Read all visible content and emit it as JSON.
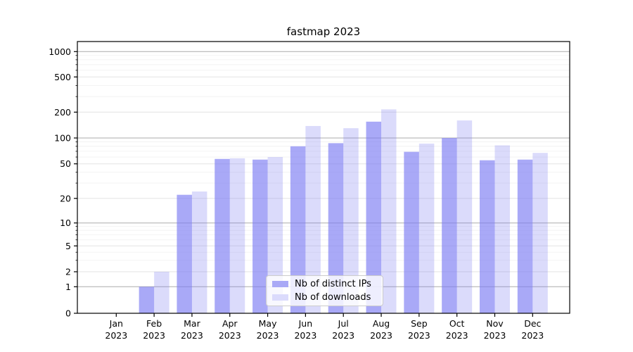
{
  "chart_data": {
    "type": "bar",
    "title": "fastmap 2023",
    "categories": [
      "Jan",
      "Feb",
      "Mar",
      "Apr",
      "May",
      "Jun",
      "Jul",
      "Aug",
      "Sep",
      "Oct",
      "Nov",
      "Dec"
    ],
    "category_year": "2023",
    "series": [
      {
        "name": "Nb of distinct IPs",
        "values": [
          0,
          1,
          22,
          57,
          56,
          80,
          87,
          155,
          69,
          100,
          55,
          56
        ],
        "bar_color_base": "#7b7bf2",
        "bar_opacity": 0.65,
        "legend_color": "#a9a9f6"
      },
      {
        "name": "Nb of downloads",
        "values": [
          0,
          2,
          24,
          58,
          60,
          138,
          130,
          215,
          86,
          160,
          82,
          67
        ],
        "bar_color_base": "#7b7bf2",
        "bar_opacity": 0.27,
        "legend_color": "#dbdbfc"
      }
    ],
    "xlabel": "",
    "ylabel": "",
    "y_axis": {
      "scale": "symlog",
      "tick_labels": [
        "0",
        "1",
        "2",
        "5",
        "10",
        "20",
        "50",
        "100",
        "200",
        "500",
        "1000"
      ],
      "tick_values": [
        0,
        1,
        2,
        5,
        10,
        20,
        50,
        100,
        200,
        500,
        1000
      ],
      "range_top_approx": 1300
    },
    "grid": true,
    "grid_major_color": "#ababab",
    "grid_mid_color": "#e3e3e3",
    "grid_minor_color": "#f0f0f0",
    "legend_position": "lower-center",
    "axis_color": "#000000"
  }
}
